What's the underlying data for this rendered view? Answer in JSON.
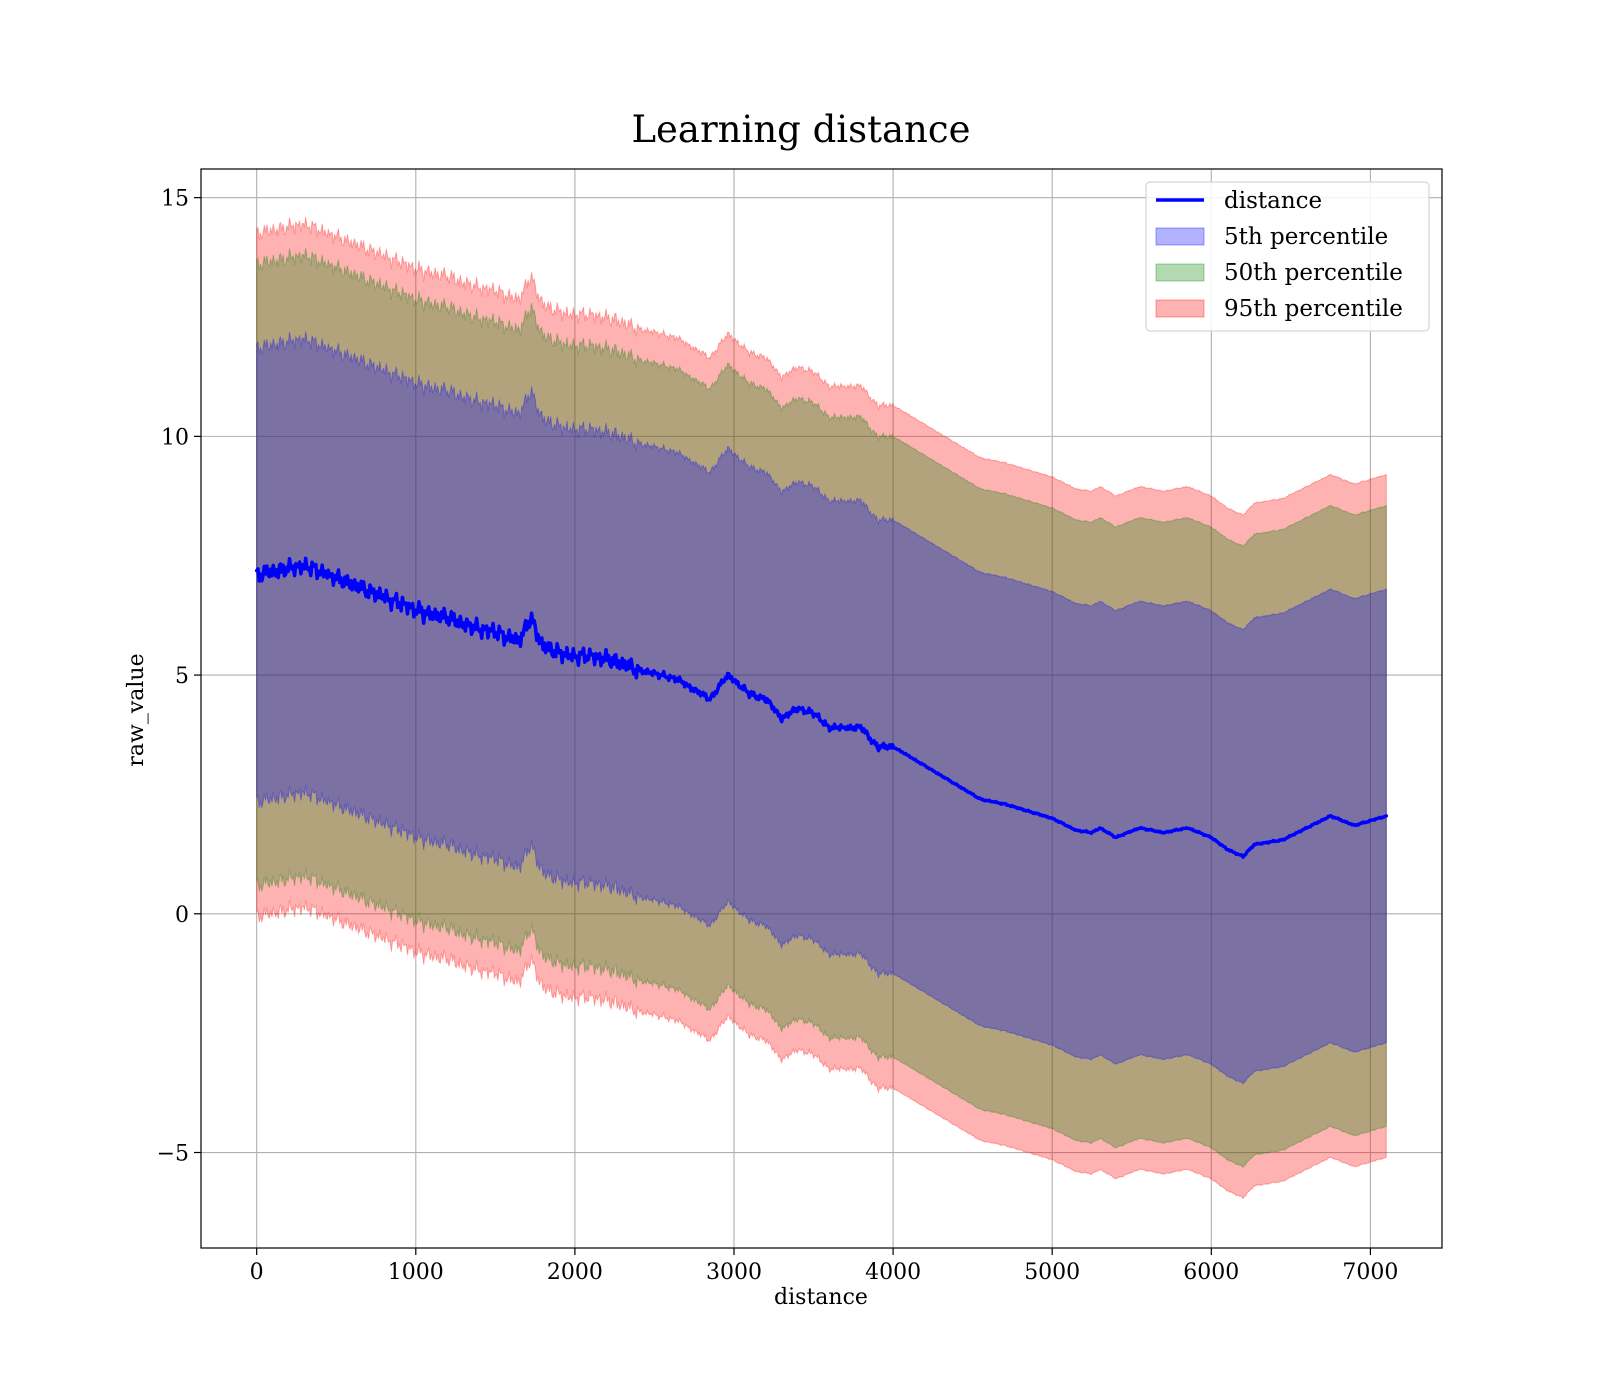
{
  "chart_data": {
    "type": "line",
    "title": "Learning distance",
    "xlabel": "distance",
    "ylabel": "raw_value",
    "xlim": [
      -350,
      7450
    ],
    "ylim": [
      -7,
      15.6
    ],
    "xticks": [
      0,
      1000,
      2000,
      3000,
      4000,
      5000,
      6000,
      7000
    ],
    "yticks": [
      -5,
      0,
      5,
      10,
      15
    ],
    "xtick_labels": [
      "0",
      "1000",
      "2000",
      "3000",
      "4000",
      "5000",
      "6000",
      "7000"
    ],
    "ytick_labels": [
      "−5",
      "0",
      "5",
      "10",
      "15"
    ],
    "grid": true,
    "legend_position": "top-right",
    "x": [
      0,
      150,
      300,
      450,
      600,
      750,
      900,
      1050,
      1200,
      1350,
      1500,
      1650,
      1720,
      1800,
      1950,
      2100,
      2250,
      2400,
      2550,
      2650,
      2750,
      2850,
      2960,
      3100,
      3200,
      3300,
      3400,
      3500,
      3600,
      3700,
      3800,
      3900,
      4000,
      4100,
      4250,
      4400,
      4550,
      4700,
      4850,
      5000,
      5150,
      5250,
      5300,
      5400,
      5550,
      5700,
      5850,
      6000,
      6100,
      6200,
      6270,
      6450,
      6600,
      6750,
      6900,
      7100
    ],
    "series": [
      {
        "name": "distance",
        "kind": "line",
        "color": "#0000ff",
        "values": [
          7.1,
          7.2,
          7.3,
          7.1,
          6.9,
          6.7,
          6.5,
          6.3,
          6.2,
          6.0,
          5.9,
          5.7,
          6.2,
          5.6,
          5.4,
          5.4,
          5.3,
          5.1,
          5.0,
          4.9,
          4.7,
          4.5,
          5.0,
          4.6,
          4.5,
          4.1,
          4.3,
          4.2,
          3.9,
          3.9,
          3.9,
          3.5,
          3.5,
          3.3,
          3.0,
          2.7,
          2.4,
          2.3,
          2.15,
          2.0,
          1.75,
          1.7,
          1.8,
          1.6,
          1.8,
          1.7,
          1.8,
          1.6,
          1.35,
          1.2,
          1.45,
          1.55,
          1.8,
          2.05,
          1.85,
          2.05
        ]
      },
      {
        "name": "5th percentile",
        "kind": "band",
        "color": "#0000ff",
        "offset": 4.75
      },
      {
        "name": "50th percentile",
        "kind": "band",
        "color": "#008000",
        "offset": 6.5
      },
      {
        "name": "95th percentile",
        "kind": "band",
        "color": "#ff0000",
        "offset": 7.15
      }
    ],
    "colors": {
      "line": "#0000ff",
      "band_5": "#0000ff",
      "band_50": "#008000",
      "band_95": "#ff0000",
      "grid": "#b0b0b0"
    }
  }
}
